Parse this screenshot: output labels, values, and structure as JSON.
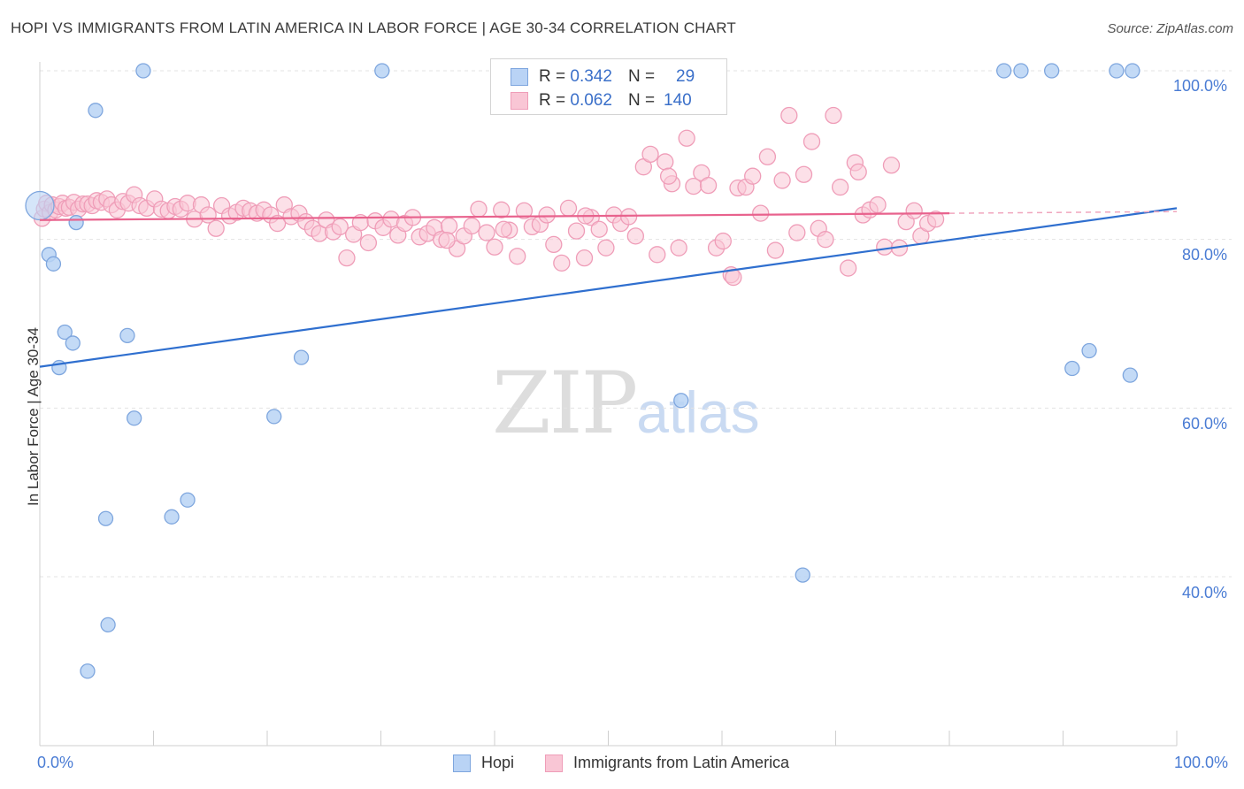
{
  "title": "HOPI VS IMMIGRANTS FROM LATIN AMERICA IN LABOR FORCE | AGE 30-34 CORRELATION CHART",
  "source": "Source: ZipAtlas.com",
  "watermark": {
    "zip": "ZIP",
    "atlas": "atlas"
  },
  "legend": {
    "rows": [
      {
        "r_label": "R =",
        "r_value": "0.342",
        "n_label": "N =",
        "n_value": "29"
      },
      {
        "r_label": "R =",
        "r_value": "0.062",
        "n_label": "N =",
        "n_value": "140"
      }
    ]
  },
  "colors": {
    "hopi_fill": "#b9d3f5",
    "hopi_stroke": "#7ea6de",
    "hopi_line": "#2f6fcf",
    "latin_fill": "#f9c6d5",
    "latin_stroke": "#ef9db8",
    "latin_line": "#e8628d",
    "axis_label": "#4a7cd4",
    "grid": "#e3e3e3"
  },
  "chart_data": {
    "type": "scatter",
    "title": "HOPI VS IMMIGRANTS FROM LATIN AMERICA IN LABOR FORCE | AGE 30-34 CORRELATION CHART",
    "xlabel": "",
    "ylabel": "In Labor Force | Age 30-34",
    "xlim": [
      0,
      100
    ],
    "ylim": [
      20,
      102
    ],
    "x_tick_labels": [
      "0.0%",
      "100.0%"
    ],
    "y_tick_labels": [
      "40.0%",
      "60.0%",
      "80.0%",
      "100.0%"
    ],
    "y_ticks": [
      40,
      60,
      80,
      100
    ],
    "grid": true,
    "series": [
      {
        "name": "Hopi",
        "r": 0.342,
        "n": 29,
        "trend": {
          "x": [
            0,
            100
          ],
          "y": [
            64.9,
            83.7
          ],
          "extrapolated_to": 100
        },
        "points": [
          [
            0.0,
            84.0
          ],
          [
            0.8,
            78.2
          ],
          [
            1.2,
            77.1
          ],
          [
            1.7,
            64.8
          ],
          [
            2.2,
            69.0
          ],
          [
            2.9,
            67.7
          ],
          [
            3.2,
            82.0
          ],
          [
            4.2,
            28.8
          ],
          [
            4.9,
            95.3
          ],
          [
            5.8,
            46.9
          ],
          [
            6.0,
            34.3
          ],
          [
            7.7,
            68.6
          ],
          [
            8.3,
            58.8
          ],
          [
            9.1,
            100.0
          ],
          [
            11.6,
            47.1
          ],
          [
            13.0,
            49.1
          ],
          [
            20.6,
            59.0
          ],
          [
            23.0,
            66.0
          ],
          [
            30.1,
            100.0
          ],
          [
            56.4,
            60.9
          ],
          [
            67.1,
            40.2
          ],
          [
            84.8,
            100.0
          ],
          [
            86.3,
            100.0
          ],
          [
            89.0,
            100.0
          ],
          [
            90.8,
            64.7
          ],
          [
            92.3,
            66.8
          ],
          [
            94.7,
            100.0
          ],
          [
            95.9,
            63.9
          ],
          [
            96.1,
            100.0
          ]
        ]
      },
      {
        "name": "Immigrants from Latin America",
        "r": 0.062,
        "n": 140,
        "trend": {
          "x": [
            0,
            80
          ],
          "y": [
            82.3,
            83.1
          ],
          "dashed_x": [
            80,
            100
          ]
        },
        "points": [
          [
            0.2,
            82.5
          ],
          [
            0.4,
            83.6
          ],
          [
            0.6,
            84.3
          ],
          [
            0.9,
            83.2
          ],
          [
            1.1,
            84.1
          ],
          [
            1.4,
            83.5
          ],
          [
            1.7,
            83.9
          ],
          [
            2.0,
            84.3
          ],
          [
            2.3,
            83.7
          ],
          [
            2.6,
            83.8
          ],
          [
            3.0,
            84.4
          ],
          [
            3.4,
            83.6
          ],
          [
            3.8,
            84.2
          ],
          [
            4.2,
            84.2
          ],
          [
            4.6,
            84.0
          ],
          [
            5.0,
            84.6
          ],
          [
            5.4,
            84.4
          ],
          [
            5.9,
            84.8
          ],
          [
            6.3,
            84.1
          ],
          [
            6.8,
            83.5
          ],
          [
            7.3,
            84.5
          ],
          [
            7.8,
            84.3
          ],
          [
            8.3,
            85.3
          ],
          [
            8.8,
            84.0
          ],
          [
            9.4,
            83.7
          ],
          [
            10.1,
            84.8
          ],
          [
            10.7,
            83.6
          ],
          [
            11.3,
            83.4
          ],
          [
            11.9,
            83.9
          ],
          [
            12.4,
            83.6
          ],
          [
            13.0,
            84.3
          ],
          [
            13.6,
            82.4
          ],
          [
            14.2,
            84.1
          ],
          [
            14.8,
            82.9
          ],
          [
            15.5,
            81.3
          ],
          [
            16.0,
            84.0
          ],
          [
            16.7,
            82.8
          ],
          [
            17.3,
            83.2
          ],
          [
            17.9,
            83.7
          ],
          [
            18.5,
            83.4
          ],
          [
            19.1,
            83.1
          ],
          [
            19.7,
            83.5
          ],
          [
            20.3,
            82.9
          ],
          [
            20.9,
            81.9
          ],
          [
            21.5,
            84.1
          ],
          [
            22.1,
            82.7
          ],
          [
            22.8,
            83.1
          ],
          [
            23.4,
            82.1
          ],
          [
            24.0,
            81.3
          ],
          [
            24.6,
            80.7
          ],
          [
            25.2,
            82.3
          ],
          [
            25.8,
            80.9
          ],
          [
            26.4,
            81.5
          ],
          [
            27.0,
            77.8
          ],
          [
            27.6,
            80.6
          ],
          [
            28.2,
            82.0
          ],
          [
            28.9,
            79.6
          ],
          [
            29.5,
            82.2
          ],
          [
            30.2,
            81.4
          ],
          [
            30.9,
            82.4
          ],
          [
            31.5,
            80.5
          ],
          [
            32.1,
            81.9
          ],
          [
            32.8,
            82.6
          ],
          [
            33.4,
            80.3
          ],
          [
            34.1,
            80.7
          ],
          [
            34.7,
            81.4
          ],
          [
            35.3,
            80.0
          ],
          [
            36.0,
            81.6
          ],
          [
            36.7,
            78.9
          ],
          [
            37.3,
            80.4
          ],
          [
            38.0,
            81.6
          ],
          [
            38.6,
            83.6
          ],
          [
            39.3,
            80.8
          ],
          [
            40.0,
            79.1
          ],
          [
            40.6,
            83.5
          ],
          [
            41.3,
            81.1
          ],
          [
            42.0,
            78.0
          ],
          [
            42.6,
            83.4
          ],
          [
            43.3,
            81.5
          ],
          [
            44.0,
            81.8
          ],
          [
            44.6,
            82.9
          ],
          [
            45.2,
            79.4
          ],
          [
            45.9,
            77.2
          ],
          [
            46.5,
            83.7
          ],
          [
            47.2,
            81.0
          ],
          [
            47.9,
            77.8
          ],
          [
            48.5,
            82.6
          ],
          [
            49.2,
            81.2
          ],
          [
            49.8,
            79.0
          ],
          [
            50.5,
            82.9
          ],
          [
            51.1,
            81.9
          ],
          [
            51.8,
            82.7
          ],
          [
            52.4,
            80.4
          ],
          [
            53.1,
            88.6
          ],
          [
            53.7,
            90.1
          ],
          [
            54.3,
            78.2
          ],
          [
            55.0,
            89.2
          ],
          [
            55.6,
            86.6
          ],
          [
            56.2,
            79.0
          ],
          [
            56.9,
            92.0
          ],
          [
            57.5,
            86.3
          ],
          [
            58.2,
            87.9
          ],
          [
            58.8,
            86.4
          ],
          [
            59.5,
            79.0
          ],
          [
            60.1,
            79.8
          ],
          [
            60.8,
            75.8
          ],
          [
            61.4,
            86.1
          ],
          [
            62.1,
            86.2
          ],
          [
            62.7,
            87.5
          ],
          [
            63.4,
            83.1
          ],
          [
            64.0,
            89.8
          ],
          [
            64.7,
            78.7
          ],
          [
            65.3,
            87.0
          ],
          [
            65.9,
            94.7
          ],
          [
            66.6,
            80.8
          ],
          [
            67.2,
            87.7
          ],
          [
            67.9,
            91.6
          ],
          [
            68.5,
            81.3
          ],
          [
            69.1,
            80.0
          ],
          [
            69.8,
            94.7
          ],
          [
            70.4,
            86.2
          ],
          [
            71.1,
            76.6
          ],
          [
            71.7,
            89.1
          ],
          [
            72.4,
            82.9
          ],
          [
            73.0,
            83.5
          ],
          [
            73.7,
            84.1
          ],
          [
            74.3,
            79.1
          ],
          [
            74.9,
            88.8
          ],
          [
            75.6,
            79.0
          ],
          [
            76.2,
            82.1
          ],
          [
            76.9,
            83.4
          ],
          [
            77.5,
            80.4
          ],
          [
            78.1,
            81.9
          ],
          [
            78.8,
            82.4
          ],
          [
            61.0,
            75.5
          ],
          [
            72.0,
            88.0
          ],
          [
            55.3,
            87.5
          ],
          [
            48.0,
            82.8
          ],
          [
            40.8,
            81.2
          ],
          [
            35.8,
            79.9
          ]
        ]
      }
    ]
  },
  "bottom_legend": [
    {
      "label": "Hopi"
    },
    {
      "label": "Immigrants from Latin America"
    }
  ]
}
